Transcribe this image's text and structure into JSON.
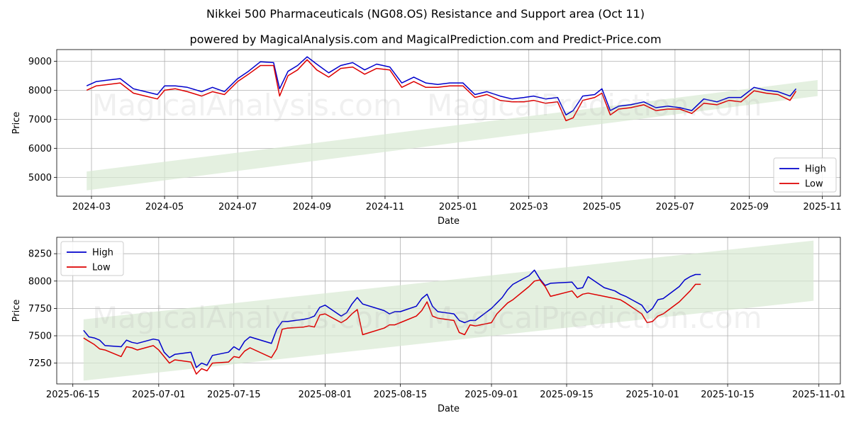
{
  "title": "Nikkei 500 Pharmaceuticals (NG08.OS) Resistance and Support area (Oct 11)",
  "subtitle": "powered by MagicalAnalysis.com and MagicalPrediction.com and Predict-Price.com",
  "watermarks": [
    "MagicalAnalysis.com",
    "MagicalPrediction.com"
  ],
  "colors": {
    "high": "#0000cc",
    "low": "#dd0000",
    "band": "#d8ead3"
  },
  "chart_data": [
    {
      "type": "line",
      "xlabel": "Date",
      "ylabel": "Price",
      "xlim": [
        "2024-02-01",
        "2025-11-16"
      ],
      "ylim": [
        4350,
        9400
      ],
      "yticks": [
        5000,
        6000,
        7000,
        8000,
        9000
      ],
      "xticks": [
        "2024-03-01",
        "2024-05-01",
        "2024-07-01",
        "2024-09-01",
        "2024-11-01",
        "2025-01-01",
        "2025-03-01",
        "2025-05-01",
        "2025-07-01",
        "2025-09-01",
        "2025-11-01"
      ],
      "xtick_labels": [
        "2024-03",
        "2024-05",
        "2024-07",
        "2024-09",
        "2024-11",
        "2025-01",
        "2025-03",
        "2025-05",
        "2025-07",
        "2025-09",
        "2025-11"
      ],
      "legend": [
        "High",
        "Low"
      ],
      "legend_position": "lower-right",
      "grid": true,
      "band": {
        "x": [
          "2024-02-26",
          "2025-10-28"
        ],
        "upper": [
          5200,
          8350
        ],
        "lower": [
          4550,
          7800
        ]
      },
      "series": [
        {
          "name": "High",
          "x": [
            "2024-02-26",
            "2024-03-05",
            "2024-03-15",
            "2024-03-25",
            "2024-04-05",
            "2024-04-15",
            "2024-04-25",
            "2024-05-01",
            "2024-05-10",
            "2024-05-20",
            "2024-06-01",
            "2024-06-10",
            "2024-06-20",
            "2024-07-01",
            "2024-07-10",
            "2024-07-20",
            "2024-07-31",
            "2024-08-05",
            "2024-08-12",
            "2024-08-20",
            "2024-08-28",
            "2024-09-05",
            "2024-09-15",
            "2024-09-25",
            "2024-10-05",
            "2024-10-15",
            "2024-10-25",
            "2024-11-05",
            "2024-11-15",
            "2024-11-25",
            "2024-12-05",
            "2024-12-15",
            "2024-12-25",
            "2025-01-05",
            "2025-01-15",
            "2025-01-25",
            "2025-02-05",
            "2025-02-15",
            "2025-02-25",
            "2025-03-05",
            "2025-03-15",
            "2025-03-25",
            "2025-04-01",
            "2025-04-07",
            "2025-04-15",
            "2025-04-25",
            "2025-05-01",
            "2025-05-08",
            "2025-05-15",
            "2025-05-25",
            "2025-06-05",
            "2025-06-15",
            "2025-06-25",
            "2025-07-05",
            "2025-07-15",
            "2025-07-25",
            "2025-08-05",
            "2025-08-15",
            "2025-08-25",
            "2025-09-05",
            "2025-09-15",
            "2025-09-25",
            "2025-10-05",
            "2025-10-10"
          ],
          "values": [
            8150,
            8300,
            8350,
            8400,
            8050,
            7950,
            7850,
            8150,
            8150,
            8100,
            7950,
            8100,
            7950,
            8400,
            8650,
            8980,
            8950,
            8050,
            8650,
            8850,
            9150,
            8900,
            8600,
            8850,
            8950,
            8700,
            8900,
            8800,
            8250,
            8450,
            8250,
            8200,
            8250,
            8250,
            7850,
            7950,
            7800,
            7700,
            7750,
            7800,
            7700,
            7750,
            7150,
            7300,
            7800,
            7850,
            8050,
            7300,
            7450,
            7500,
            7600,
            7400,
            7450,
            7400,
            7300,
            7700,
            7600,
            7750,
            7750,
            8100,
            8000,
            7950,
            7800,
            8050
          ]
        },
        {
          "name": "Low",
          "x": [
            "2024-02-26",
            "2024-03-05",
            "2024-03-15",
            "2024-03-25",
            "2024-04-05",
            "2024-04-15",
            "2024-04-25",
            "2024-05-01",
            "2024-05-10",
            "2024-05-20",
            "2024-06-01",
            "2024-06-10",
            "2024-06-20",
            "2024-07-01",
            "2024-07-10",
            "2024-07-20",
            "2024-07-31",
            "2024-08-05",
            "2024-08-12",
            "2024-08-20",
            "2024-08-28",
            "2024-09-05",
            "2024-09-15",
            "2024-09-25",
            "2024-10-05",
            "2024-10-15",
            "2024-10-25",
            "2024-11-05",
            "2024-11-15",
            "2024-11-25",
            "2024-12-05",
            "2024-12-15",
            "2024-12-25",
            "2025-01-05",
            "2025-01-15",
            "2025-01-25",
            "2025-02-05",
            "2025-02-15",
            "2025-02-25",
            "2025-03-05",
            "2025-03-15",
            "2025-03-25",
            "2025-04-01",
            "2025-04-07",
            "2025-04-15",
            "2025-04-25",
            "2025-05-01",
            "2025-05-08",
            "2025-05-15",
            "2025-05-25",
            "2025-06-05",
            "2025-06-15",
            "2025-06-25",
            "2025-07-05",
            "2025-07-15",
            "2025-07-25",
            "2025-08-05",
            "2025-08-15",
            "2025-08-25",
            "2025-09-05",
            "2025-09-15",
            "2025-09-25",
            "2025-10-05",
            "2025-10-10"
          ],
          "values": [
            8000,
            8150,
            8200,
            8250,
            7900,
            7800,
            7700,
            8000,
            8050,
            7950,
            7800,
            7950,
            7850,
            8300,
            8550,
            8850,
            8850,
            7800,
            8500,
            8700,
            9050,
            8700,
            8450,
            8750,
            8800,
            8550,
            8750,
            8700,
            8100,
            8300,
            8100,
            8100,
            8150,
            8150,
            7750,
            7850,
            7650,
            7600,
            7600,
            7650,
            7550,
            7600,
            6950,
            7050,
            7650,
            7750,
            7900,
            7150,
            7350,
            7400,
            7500,
            7300,
            7350,
            7350,
            7200,
            7550,
            7500,
            7650,
            7600,
            7980,
            7900,
            7850,
            7650,
            7970
          ]
        }
      ]
    },
    {
      "type": "line",
      "xlabel": "Date",
      "ylabel": "Price",
      "xlim": [
        "2025-06-12",
        "2025-11-05"
      ],
      "ylim": [
        7060,
        8400
      ],
      "yticks": [
        7250,
        7500,
        7750,
        8000,
        8250
      ],
      "xticks": [
        "2025-06-15",
        "2025-07-01",
        "2025-07-15",
        "2025-08-01",
        "2025-08-15",
        "2025-09-01",
        "2025-09-15",
        "2025-10-01",
        "2025-10-15",
        "2025-11-01"
      ],
      "xtick_labels": [
        "2025-06-15",
        "2025-07-01",
        "2025-07-15",
        "2025-08-01",
        "2025-08-15",
        "2025-09-01",
        "2025-09-15",
        "2025-10-01",
        "2025-10-15",
        "2025-11-01"
      ],
      "legend": [
        "High",
        "Low"
      ],
      "legend_position": "upper-left",
      "grid": true,
      "band": {
        "x": [
          "2025-06-17",
          "2025-10-31"
        ],
        "upper": [
          7650,
          8370
        ],
        "lower": [
          7090,
          7820
        ]
      },
      "series": [
        {
          "name": "High",
          "x": [
            "2025-06-17",
            "2025-06-18",
            "2025-06-19",
            "2025-06-20",
            "2025-06-21",
            "2025-06-24",
            "2025-06-25",
            "2025-06-26",
            "2025-06-27",
            "2025-06-30",
            "2025-07-01",
            "2025-07-02",
            "2025-07-03",
            "2025-07-04",
            "2025-07-07",
            "2025-07-08",
            "2025-07-09",
            "2025-07-10",
            "2025-07-11",
            "2025-07-14",
            "2025-07-15",
            "2025-07-16",
            "2025-07-17",
            "2025-07-18",
            "2025-07-22",
            "2025-07-23",
            "2025-07-24",
            "2025-07-25",
            "2025-07-28",
            "2025-07-29",
            "2025-07-30",
            "2025-07-31",
            "2025-08-01",
            "2025-08-04",
            "2025-08-05",
            "2025-08-06",
            "2025-08-07",
            "2025-08-08",
            "2025-08-12",
            "2025-08-13",
            "2025-08-14",
            "2025-08-15",
            "2025-08-18",
            "2025-08-19",
            "2025-08-20",
            "2025-08-21",
            "2025-08-22",
            "2025-08-25",
            "2025-08-26",
            "2025-08-27",
            "2025-08-28",
            "2025-08-29",
            "2025-09-01",
            "2025-09-02",
            "2025-09-03",
            "2025-09-04",
            "2025-09-05",
            "2025-09-08",
            "2025-09-09",
            "2025-09-10",
            "2025-09-11",
            "2025-09-12",
            "2025-09-16",
            "2025-09-17",
            "2025-09-18",
            "2025-09-19",
            "2025-09-22",
            "2025-09-24",
            "2025-09-25",
            "2025-09-26",
            "2025-09-29",
            "2025-09-30",
            "2025-10-01",
            "2025-10-02",
            "2025-10-03",
            "2025-10-06",
            "2025-10-07",
            "2025-10-08",
            "2025-10-09",
            "2025-10-10"
          ],
          "values": [
            7550,
            7490,
            7480,
            7460,
            7410,
            7400,
            7460,
            7440,
            7430,
            7470,
            7460,
            7350,
            7300,
            7330,
            7350,
            7210,
            7250,
            7230,
            7320,
            7350,
            7400,
            7370,
            7450,
            7490,
            7430,
            7560,
            7630,
            7630,
            7650,
            7660,
            7680,
            7760,
            7780,
            7680,
            7710,
            7790,
            7850,
            7790,
            7730,
            7700,
            7720,
            7720,
            7770,
            7840,
            7880,
            7770,
            7720,
            7700,
            7640,
            7620,
            7640,
            7640,
            7750,
            7800,
            7850,
            7920,
            7970,
            8050,
            8100,
            8020,
            7960,
            7980,
            7990,
            7930,
            7940,
            8040,
            7940,
            7910,
            7880,
            7860,
            7780,
            7710,
            7750,
            7830,
            7840,
            7950,
            8010,
            8040,
            8060,
            8060
          ]
        },
        {
          "name": "Low",
          "x": [
            "2025-06-17",
            "2025-06-18",
            "2025-06-19",
            "2025-06-20",
            "2025-06-21",
            "2025-06-24",
            "2025-06-25",
            "2025-06-26",
            "2025-06-27",
            "2025-06-30",
            "2025-07-01",
            "2025-07-02",
            "2025-07-03",
            "2025-07-04",
            "2025-07-07",
            "2025-07-08",
            "2025-07-09",
            "2025-07-10",
            "2025-07-11",
            "2025-07-14",
            "2025-07-15",
            "2025-07-16",
            "2025-07-17",
            "2025-07-18",
            "2025-07-22",
            "2025-07-23",
            "2025-07-24",
            "2025-07-25",
            "2025-07-28",
            "2025-07-29",
            "2025-07-30",
            "2025-07-31",
            "2025-08-01",
            "2025-08-04",
            "2025-08-05",
            "2025-08-06",
            "2025-08-07",
            "2025-08-08",
            "2025-08-12",
            "2025-08-13",
            "2025-08-14",
            "2025-08-15",
            "2025-08-18",
            "2025-08-19",
            "2025-08-20",
            "2025-08-21",
            "2025-08-22",
            "2025-08-25",
            "2025-08-26",
            "2025-08-27",
            "2025-08-28",
            "2025-08-29",
            "2025-09-01",
            "2025-09-02",
            "2025-09-03",
            "2025-09-04",
            "2025-09-05",
            "2025-09-08",
            "2025-09-09",
            "2025-09-10",
            "2025-09-11",
            "2025-09-12",
            "2025-09-16",
            "2025-09-17",
            "2025-09-18",
            "2025-09-19",
            "2025-09-22",
            "2025-09-24",
            "2025-09-25",
            "2025-09-26",
            "2025-09-29",
            "2025-09-30",
            "2025-10-01",
            "2025-10-02",
            "2025-10-03",
            "2025-10-06",
            "2025-10-07",
            "2025-10-08",
            "2025-10-09",
            "2025-10-10"
          ],
          "values": [
            7480,
            7450,
            7420,
            7380,
            7370,
            7310,
            7400,
            7390,
            7370,
            7410,
            7370,
            7310,
            7250,
            7280,
            7260,
            7150,
            7200,
            7180,
            7250,
            7260,
            7310,
            7300,
            7360,
            7390,
            7300,
            7380,
            7560,
            7570,
            7580,
            7590,
            7580,
            7690,
            7700,
            7620,
            7650,
            7700,
            7740,
            7510,
            7570,
            7600,
            7600,
            7620,
            7680,
            7730,
            7810,
            7680,
            7660,
            7640,
            7530,
            7510,
            7600,
            7590,
            7620,
            7700,
            7750,
            7800,
            7830,
            7950,
            8000,
            8010,
            7950,
            7860,
            7910,
            7850,
            7880,
            7890,
            7860,
            7840,
            7830,
            7800,
            7700,
            7620,
            7630,
            7680,
            7700,
            7810,
            7860,
            7910,
            7970,
            7970
          ]
        }
      ]
    }
  ]
}
